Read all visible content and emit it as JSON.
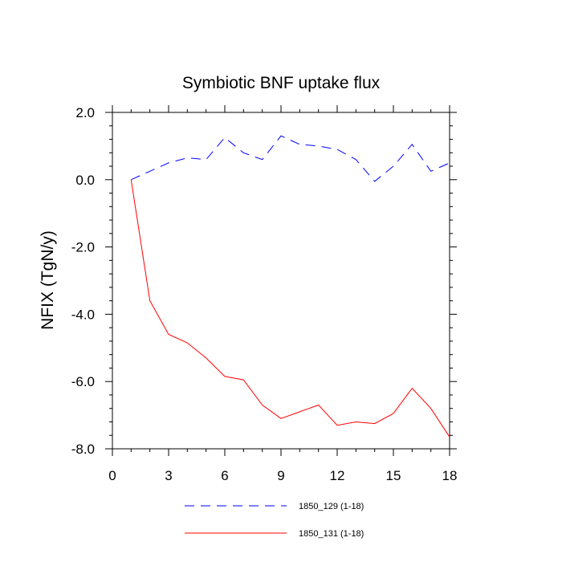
{
  "chart_data": {
    "type": "line",
    "title": "Symbiotic BNF uptake flux",
    "xlabel": "",
    "ylabel": "NFIX  (TgN/y)",
    "xlim": [
      0,
      18
    ],
    "ylim": [
      -8.0,
      2.0
    ],
    "x_ticks": [
      0,
      3,
      6,
      9,
      12,
      15,
      18
    ],
    "x_tick_labels": [
      "0",
      "3",
      "6",
      "9",
      "12",
      "15",
      "18"
    ],
    "y_ticks": [
      2.0,
      0.0,
      -2.0,
      -4.0,
      -6.0,
      -8.0
    ],
    "y_tick_labels": [
      "2.0",
      "0.0",
      "-2.0",
      "-4.0",
      "-6.0",
      "-8.0"
    ],
    "grid": false,
    "legend_position": "bottom",
    "x": [
      1,
      2,
      3,
      4,
      5,
      6,
      7,
      8,
      9,
      10,
      11,
      12,
      13,
      14,
      15,
      16,
      17,
      18
    ],
    "series": [
      {
        "name": "1850_129 (1-18)",
        "color": "#0000ff",
        "dash": "dashed",
        "values": [
          0.0,
          0.25,
          0.5,
          0.65,
          0.6,
          1.25,
          0.8,
          0.6,
          1.3,
          1.05,
          1.0,
          0.9,
          0.6,
          -0.05,
          0.4,
          1.05,
          0.25,
          0.5
        ]
      },
      {
        "name": "1850_131 (1-18)",
        "color": "#ff0000",
        "dash": "solid",
        "values": [
          0.0,
          -3.6,
          -4.6,
          -4.85,
          -5.3,
          -5.85,
          -5.95,
          -6.7,
          -7.1,
          -6.9,
          -6.7,
          -7.3,
          -7.2,
          -7.25,
          -6.95,
          -6.2,
          -6.8,
          -7.65
        ]
      }
    ]
  }
}
